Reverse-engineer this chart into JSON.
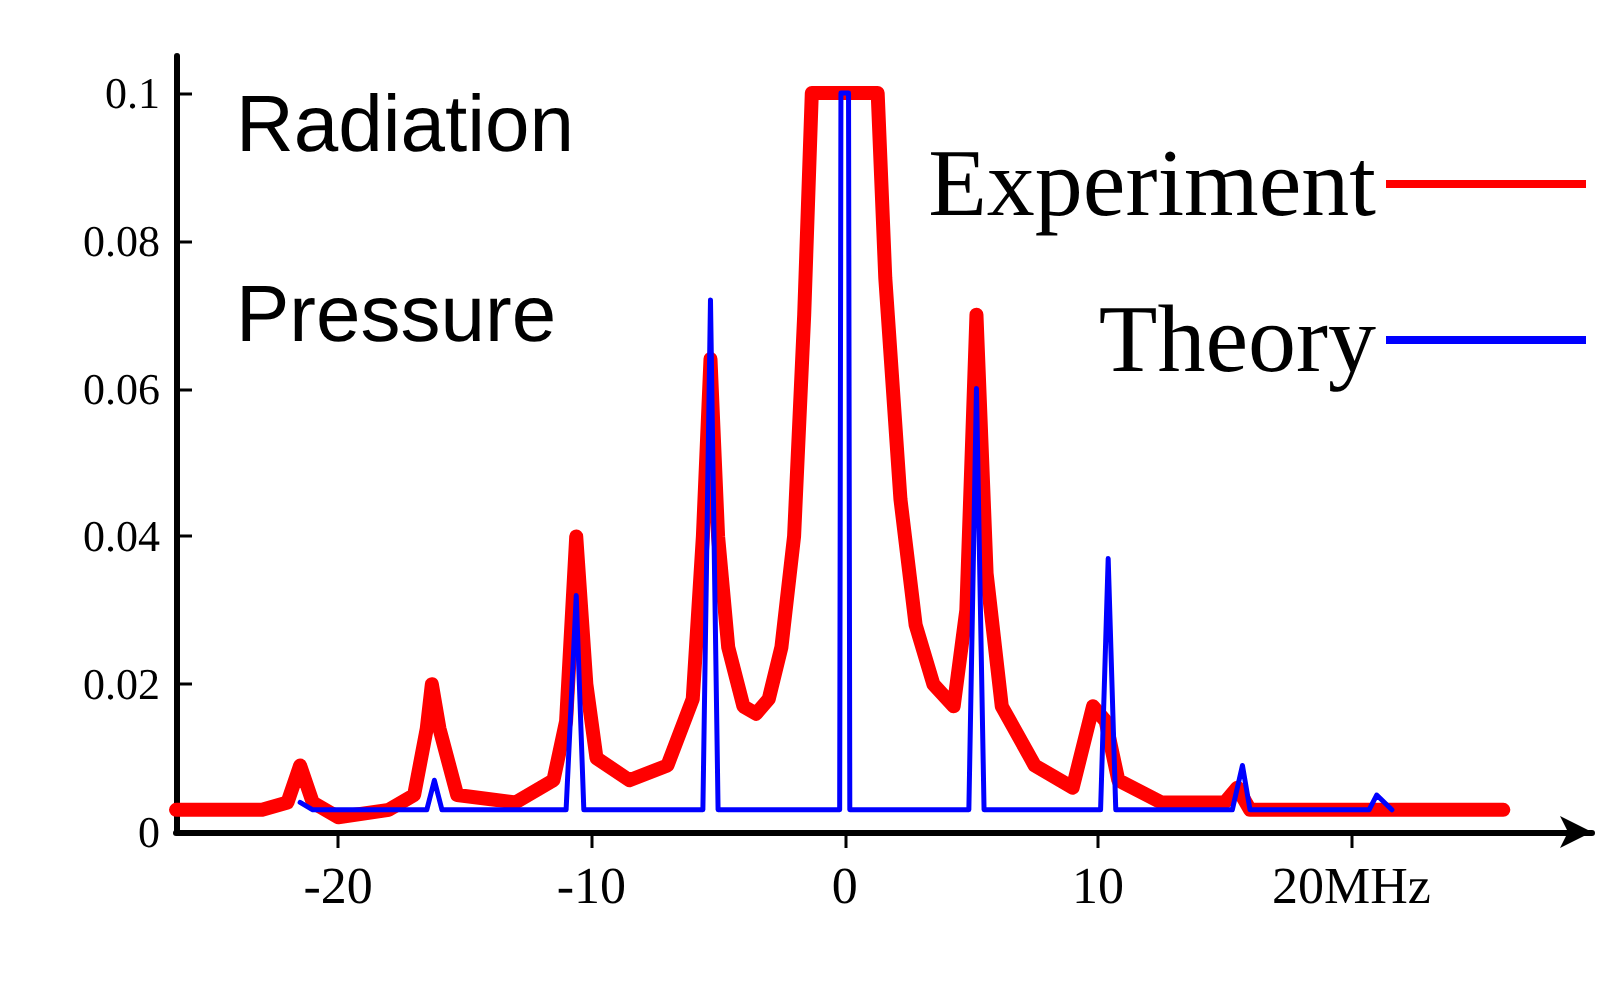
{
  "chart_data": {
    "type": "line",
    "title": "Radiation Pressure",
    "xlim": [
      -26.4,
      29.5
    ],
    "ylim": [
      0,
      0.105
    ],
    "xticks": [
      -20,
      -10,
      0,
      10,
      {
        "value": 20,
        "label": "20MHz"
      }
    ],
    "yticks": [
      0,
      0.02,
      0.04,
      0.06,
      0.08,
      0.1
    ],
    "legend": "top right",
    "marker": "none",
    "line_style": "solid",
    "grid": false,
    "series": [
      {
        "name": "Experiment",
        "color": "#ff0000",
        "x": [
          -26.4,
          -23,
          -22,
          -21.5,
          -21,
          -20,
          -18,
          -17,
          -16.5,
          -16.3,
          -16,
          -15.3,
          -13,
          -11.5,
          -11,
          -10.6,
          -10.2,
          -9.8,
          -8.5,
          -7,
          -6,
          -5.6,
          -5.3,
          -5,
          -4.6,
          -4,
          -3.5,
          -3,
          -2.5,
          -2,
          -1.6,
          -1.3,
          1.3,
          1.6,
          2.2,
          2.8,
          3.5,
          4.3,
          4.8,
          5.2,
          5.6,
          6.2,
          7.5,
          9,
          9.8,
          10.3,
          10.8,
          12.5,
          15,
          15.5,
          16,
          20,
          26
        ],
        "values": [
          0.003,
          0.003,
          0.004,
          0.009,
          0.004,
          0.002,
          0.003,
          0.005,
          0.014,
          0.02,
          0.014,
          0.005,
          0.004,
          0.007,
          0.015,
          0.04,
          0.02,
          0.01,
          0.007,
          0.009,
          0.018,
          0.04,
          0.064,
          0.04,
          0.025,
          0.017,
          0.016,
          0.018,
          0.025,
          0.04,
          0.07,
          0.1,
          0.1,
          0.075,
          0.045,
          0.028,
          0.02,
          0.017,
          0.03,
          0.07,
          0.035,
          0.017,
          0.009,
          0.006,
          0.017,
          0.015,
          0.007,
          0.004,
          0.004,
          0.006,
          0.003,
          0.003,
          0.003
        ]
      },
      {
        "name": "Theory",
        "color": "#0000ff",
        "x": [
          -21.5,
          -21,
          -16.5,
          -16.2,
          -15.9,
          -11,
          -10.6,
          -10.3,
          -5.6,
          -5.3,
          -5,
          -0.2,
          -0.15,
          0.15,
          0.2,
          4.9,
          5.2,
          5.5,
          10.1,
          10.4,
          10.7,
          15.3,
          15.7,
          16,
          20.7,
          21,
          21.6
        ],
        "values": [
          0.004,
          0.003,
          0.003,
          0.007,
          0.003,
          0.003,
          0.032,
          0.003,
          0.003,
          0.072,
          0.003,
          0.003,
          0.1,
          0.1,
          0.003,
          0.003,
          0.06,
          0.003,
          0.003,
          0.037,
          0.003,
          0.003,
          0.009,
          0.003,
          0.003,
          0.005,
          0.003
        ]
      }
    ]
  }
}
